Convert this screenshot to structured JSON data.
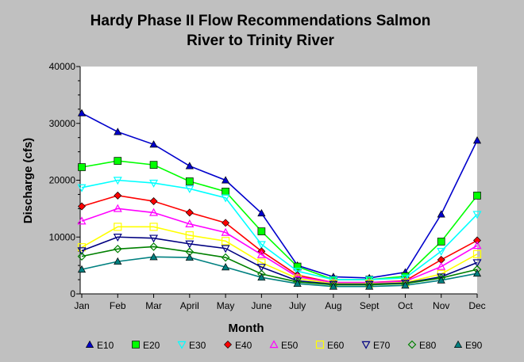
{
  "chart_data": {
    "type": "line",
    "title_lines": [
      "Hardy Phase II Flow Recommendations Salmon",
      "River to Trinity River"
    ],
    "xlabel": "Month",
    "ylabel": "Discharge (cfs)",
    "ylim": [
      0,
      40000
    ],
    "yticks": [
      0,
      10000,
      20000,
      30000,
      40000
    ],
    "ytick_labels": [
      "0",
      "10000",
      "20000",
      "30000",
      "40000"
    ],
    "categories": [
      "Jan",
      "Feb",
      "Mar",
      "April",
      "May",
      "June",
      "July",
      "Aug",
      "Sept",
      "Oct",
      "Nov",
      "Dec"
    ],
    "grid": false,
    "legend_position": "bottom",
    "series": [
      {
        "name": "E10",
        "color": "#0000cc",
        "marker": "triangle-up",
        "filled": true,
        "values": [
          31800,
          28500,
          26300,
          22500,
          20000,
          14200,
          5000,
          3000,
          2800,
          3800,
          14000,
          27000
        ]
      },
      {
        "name": "E20",
        "color": "#00ff00",
        "marker": "square",
        "filled": true,
        "values": [
          22300,
          23400,
          22700,
          19800,
          18000,
          11000,
          4800,
          2500,
          2500,
          3100,
          9200,
          17300
        ]
      },
      {
        "name": "E30",
        "color": "#00ffff",
        "marker": "triangle-down",
        "filled": false,
        "values": [
          18700,
          20000,
          19500,
          18500,
          16900,
          8700,
          4000,
          2500,
          2500,
          2800,
          7500,
          14000
        ]
      },
      {
        "name": "E40",
        "color": "#ff0000",
        "marker": "diamond",
        "filled": true,
        "values": [
          15400,
          17300,
          16300,
          14300,
          12500,
          7500,
          3300,
          2000,
          2000,
          2300,
          6000,
          9400
        ]
      },
      {
        "name": "E50",
        "color": "#ff00ff",
        "marker": "triangle-up",
        "filled": false,
        "values": [
          12800,
          15000,
          14300,
          12300,
          10800,
          6900,
          3000,
          2000,
          2000,
          2200,
          4800,
          8500
        ]
      },
      {
        "name": "E60",
        "color": "#ffff00",
        "marker": "square",
        "filled": false,
        "values": [
          8200,
          11800,
          11800,
          10300,
          9300,
          5500,
          2700,
          1800,
          1800,
          2000,
          3500,
          7000
        ]
      },
      {
        "name": "E70",
        "color": "#000080",
        "marker": "triangle-down",
        "filled": false,
        "values": [
          7600,
          10000,
          9800,
          8800,
          8000,
          4700,
          2300,
          1700,
          1700,
          1900,
          3000,
          5500
        ]
      },
      {
        "name": "E80",
        "color": "#008000",
        "marker": "diamond",
        "filled": false,
        "values": [
          6600,
          7900,
          8300,
          7400,
          6400,
          3500,
          2100,
          1600,
          1600,
          1800,
          2800,
          4300
        ]
      },
      {
        "name": "E90",
        "color": "#008080",
        "marker": "triangle-up",
        "filled": true,
        "values": [
          4300,
          5700,
          6500,
          6400,
          4700,
          2900,
          1800,
          1300,
          1300,
          1500,
          2400,
          3600
        ]
      }
    ]
  }
}
